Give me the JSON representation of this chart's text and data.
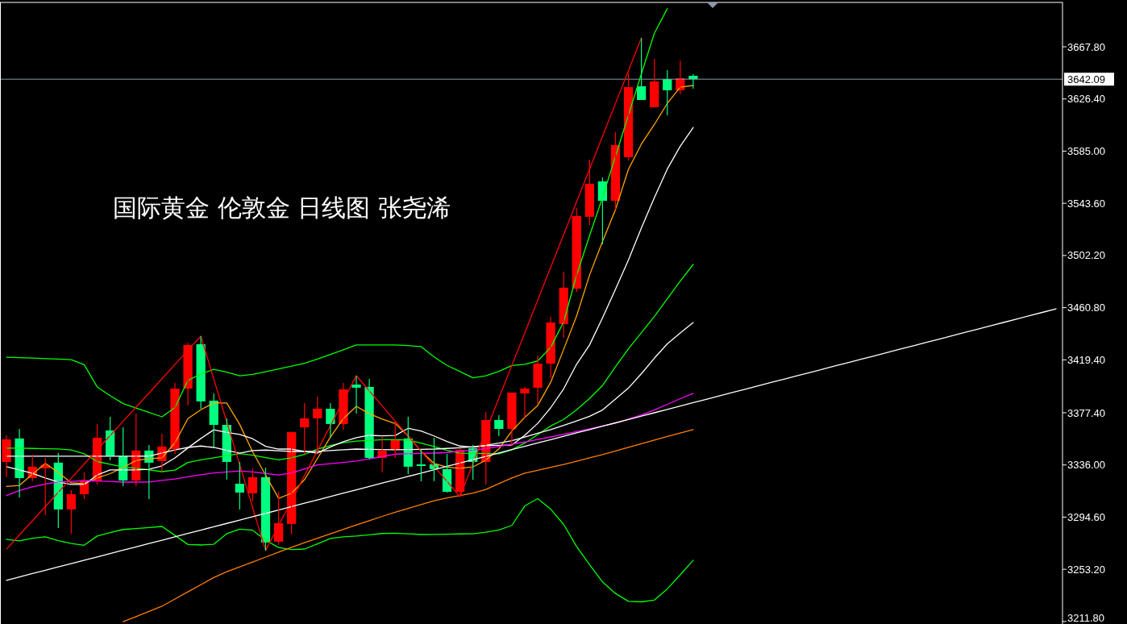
{
  "chart_data": {
    "type": "candlestick",
    "title": "国际黄金 伦敦金 日线图 张尧浠",
    "categories": [
      null,
      null,
      null,
      null,
      null,
      null,
      null,
      null,
      null,
      null,
      null,
      null,
      null,
      null,
      null,
      null,
      null,
      null,
      null,
      null,
      null,
      null,
      null,
      null,
      null,
      null,
      null,
      null,
      null,
      null,
      null,
      null,
      null,
      null,
      null,
      null,
      null,
      null,
      null,
      null,
      null,
      null,
      null,
      null,
      null,
      null,
      null,
      null,
      null,
      null,
      null,
      null,
      null,
      null,
      null,
      null,
      null,
      null,
      null,
      null,
      null,
      null,
      null,
      null,
      null,
      null,
      null,
      null,
      null,
      null,
      null,
      null,
      null,
      null,
      null,
      null,
      null,
      null,
      null,
      null,
      null,
      null
    ],
    "ohlc": [
      [
        3338.4,
        3359.5,
        3326.3,
        3356.3
      ],
      [
        3357.0,
        3364.6,
        3310.3,
        3325.6
      ],
      [
        3325.6,
        3344.2,
        3323.1,
        3334.6
      ],
      [
        3333.3,
        3341.6,
        3296.2,
        3336.0
      ],
      [
        3337.8,
        3345.4,
        3286.0,
        3300.7
      ],
      [
        3300.7,
        3316.0,
        3281.5,
        3312.8
      ],
      [
        3312.8,
        3330.1,
        3309.0,
        3323.7
      ],
      [
        3323.1,
        3368.5,
        3320.5,
        3357.6
      ],
      [
        3363.4,
        3374.2,
        3339.7,
        3342.9
      ],
      [
        3342.9,
        3365.9,
        3319.2,
        3323.7
      ],
      [
        3323.7,
        3376.8,
        3319.2,
        3347.4
      ],
      [
        3347.4,
        3351.8,
        3309.0,
        3337.8
      ],
      [
        3339.1,
        3360.8,
        3330.7,
        3350.6
      ],
      [
        3348.6,
        3401.1,
        3344.8,
        3396.6
      ],
      [
        3396.6,
        3433.1,
        3383.2,
        3431.2
      ],
      [
        3431.8,
        3438.2,
        3380.6,
        3386.4
      ],
      [
        3387.0,
        3392.8,
        3350.6,
        3367.8
      ],
      [
        3367.8,
        3373.0,
        3324.3,
        3338.4
      ],
      [
        3321.1,
        3338.4,
        3300.7,
        3314.1
      ],
      [
        3313.5,
        3333.3,
        3307.1,
        3326.3
      ],
      [
        3326.3,
        3333.9,
        3268.1,
        3274.5
      ],
      [
        3275.1,
        3314.7,
        3272.5,
        3289.8
      ],
      [
        3289.2,
        3362.1,
        3280.9,
        3362.1
      ],
      [
        3365.9,
        3385.1,
        3344.8,
        3373.0
      ],
      [
        3373.0,
        3390.2,
        3348.0,
        3380.6
      ],
      [
        3380.6,
        3385.1,
        3357.6,
        3368.5
      ],
      [
        3368.5,
        3401.1,
        3364.0,
        3396.0
      ],
      [
        3399.8,
        3406.8,
        3376.8,
        3397.3
      ],
      [
        3397.9,
        3404.3,
        3340.3,
        3341.6
      ],
      [
        3341.6,
        3358.2,
        3330.1,
        3347.4
      ],
      [
        3348.0,
        3370.4,
        3341.6,
        3355.7
      ],
      [
        3357.0,
        3374.2,
        3328.8,
        3334.6
      ],
      [
        3336.5,
        3348.0,
        3323.1,
        3335.2
      ],
      [
        3336.5,
        3357.6,
        3323.1,
        3332.7
      ],
      [
        3332.7,
        3344.8,
        3314.1,
        3314.7
      ],
      [
        3314.7,
        3349.3,
        3310.9,
        3348.0
      ],
      [
        3349.3,
        3351.8,
        3324.3,
        3338.4
      ],
      [
        3338.4,
        3378.1,
        3320.5,
        3371.7
      ],
      [
        3371.7,
        3375.5,
        3358.9,
        3364.6
      ],
      [
        3364.6,
        3393.4,
        3351.2,
        3393.4
      ],
      [
        3392.8,
        3397.9,
        3373.0,
        3396.6
      ],
      [
        3397.3,
        3422.8,
        3383.8,
        3416.4
      ],
      [
        3416.4,
        3453.5,
        3404.9,
        3449.0
      ],
      [
        3447.8,
        3489.4,
        3436.9,
        3476.6
      ],
      [
        3475.9,
        3539.9,
        3473.4,
        3533.5
      ],
      [
        3532.9,
        3578.3,
        3526.4,
        3559.1
      ],
      [
        3561.0,
        3564.2,
        3511.1,
        3545.6
      ],
      [
        3545.6,
        3600.0,
        3538.6,
        3589.8
      ],
      [
        3580.2,
        3646.7,
        3577.6,
        3635.8
      ],
      [
        3636.5,
        3674.8,
        3625.6,
        3625.6
      ],
      [
        3619.8,
        3658.2,
        3619.8,
        3640.3
      ],
      [
        3642.2,
        3649.3,
        3613.4,
        3633.3
      ],
      [
        3633.3,
        3656.9,
        3630.1,
        3642.9
      ],
      [
        3644.8,
        3646.1,
        3634.5,
        3642.09
      ],
      null,
      null,
      null,
      null,
      null,
      null,
      null,
      null,
      null,
      null,
      null,
      null,
      null,
      null,
      null,
      null,
      null,
      null,
      null,
      null,
      null,
      null,
      null,
      null,
      null,
      null,
      null,
      null
    ],
    "colors": [
      "#ff0000",
      "#00ff7f",
      "#ff0000",
      "#ff0000",
      "#00ff7f",
      "#ff0000",
      "#ff0000",
      "#ff0000",
      "#00ff7f",
      "#00ff7f",
      "#ff0000",
      "#00ff7f",
      "#ff0000",
      "#ff0000",
      "#ff0000",
      "#00ff7f",
      "#00ff7f",
      "#00ff7f",
      "#00ff7f",
      "#ff0000",
      "#00ff7f",
      "#ff0000",
      "#ff0000",
      "#ff0000",
      "#ff0000",
      "#00ff7f",
      "#ff0000",
      "#00ff7f",
      "#00ff7f",
      "#ff0000",
      "#ff0000",
      "#00ff7f",
      "#00ff7f",
      "#00ff7f",
      "#00ff7f",
      "#ff0000",
      "#00ff7f",
      "#ff0000",
      "#00ff7f",
      "#ff0000",
      "#ff0000",
      "#ff0000",
      "#ff0000",
      "#ff0000",
      "#ff0000",
      "#ff0000",
      "#00ff7f",
      "#ff0000",
      "#ff0000",
      "#00ff7f",
      "#ff0000",
      "#00ff7f",
      "#ff0000",
      "#00ff7f",
      null,
      null,
      null,
      null,
      null,
      null,
      null,
      null,
      null,
      null,
      null,
      null,
      null,
      null,
      null,
      null,
      null,
      null,
      null,
      null,
      null,
      null,
      null,
      null,
      null,
      null,
      null,
      null
    ],
    "series": [
      {
        "type": "line",
        "color": "#00ff00",
        "values": [
          3421.5,
          3421.2,
          3420.8,
          3420.4,
          3420.0,
          3419.6,
          3415.5,
          3397.9,
          3391.0,
          3384.7,
          3381.2,
          3377.7,
          3374.2,
          3381.5,
          3403.0,
          3408.2,
          3411.9,
          3409.6,
          3406.8,
          3407.8,
          3410.0,
          3412.2,
          3414.4,
          3416.6,
          3420.0,
          3423.7,
          3427.4,
          3431.2,
          3431.2,
          3431.2,
          3431.2,
          3430.7,
          3429.9,
          3421.7,
          3415.0,
          3410.1,
          3405.2,
          3406.8,
          3410.3,
          3414.9,
          3415.9,
          3418.5,
          3429.3,
          3449.5,
          3486.6,
          3518.0,
          3548.2,
          3581.0,
          3613.5,
          3646.4,
          3678.5,
          3698.1,
          null,
          null,
          null,
          null,
          null,
          null,
          null,
          null,
          null,
          null,
          null,
          null,
          null,
          null,
          null,
          null,
          null,
          null,
          null,
          null,
          null,
          null,
          null,
          null,
          null,
          null,
          null,
          null,
          null,
          null
        ]
      },
      {
        "type": "line",
        "color": "#00ff00",
        "values": [
          3349.3,
          3349.3,
          3349.1,
          3348.9,
          3348.7,
          3347.9,
          3344.9,
          3338.7,
          3336.5,
          3334.5,
          3333.3,
          3332.1,
          3330.7,
          3331.9,
          3338.0,
          3340.0,
          3341.7,
          3343.4,
          3345.0,
          3343.8,
          3341.8,
          3340.0,
          3341.6,
          3344.3,
          3348.6,
          3351.4,
          3353.6,
          3354.9,
          3355.4,
          3356.0,
          3356.1,
          3355.8,
          3353.4,
          3350.6,
          3347.6,
          3345.3,
          3345.2,
          3345.0,
          3344.8,
          3348.1,
          3353.3,
          3360.1,
          3366.9,
          3372.1,
          3379.8,
          3388.8,
          3399.0,
          3414.0,
          3428.2,
          3441.0,
          3453.8,
          3467.8,
          3481.9,
          3495.1,
          null,
          null,
          null,
          null,
          null,
          null,
          null,
          null,
          null,
          null,
          null,
          null,
          null,
          null,
          null,
          null,
          null,
          null,
          null,
          null,
          null,
          null,
          null,
          null,
          null,
          null,
          null,
          null
        ]
      },
      {
        "type": "line",
        "color": "#00ff00",
        "values": [
          3276.9,
          3275.8,
          3277.9,
          3279.0,
          3276.0,
          3273.7,
          3272.3,
          3279.6,
          3282.3,
          3284.8,
          3285.5,
          3286.3,
          3287.2,
          3280.1,
          3272.9,
          3272.5,
          3273.1,
          3281.5,
          3285.1,
          3284.2,
          3276.3,
          3270.5,
          3268.9,
          3269.3,
          3273.4,
          3277.7,
          3279.0,
          3279.6,
          3280.6,
          3281.6,
          3281.9,
          3281.4,
          3280.8,
          3280.9,
          3281.1,
          3281.3,
          3281.4,
          3282.6,
          3284.4,
          3288.0,
          3303.5,
          3309.3,
          3300.9,
          3288.8,
          3271.3,
          3256.9,
          3243.2,
          3234.0,
          3227.8,
          3227.4,
          3228.8,
          3237.7,
          3248.8,
          3260.4,
          null,
          null,
          null,
          null,
          null,
          null,
          null,
          null,
          null,
          null,
          null,
          null,
          null,
          null,
          null,
          null,
          null,
          null,
          null,
          null,
          null,
          null,
          null,
          null,
          null,
          null,
          null,
          null
        ]
      },
      {
        "type": "line",
        "color": "#ffa500",
        "values": [
          3318.9,
          3319.8,
          3328.6,
          3337.3,
          3330.0,
          3321.8,
          3321.1,
          3325.6,
          3329.1,
          3333.9,
          3339.6,
          3341.0,
          3341.6,
          3353.6,
          3372.8,
          3379.8,
          3385.3,
          3385.1,
          3368.2,
          3346.4,
          3328.0,
          3309.5,
          3313.6,
          3324.3,
          3341.1,
          3358.1,
          3372.8,
          3382.5,
          3376.7,
          3372.3,
          3368.9,
          3359.0,
          3346.8,
          3337.2,
          3334.3,
          3333.3,
          3334.4,
          3339.8,
          3348.7,
          3362.9,
          3373.7,
          3383.2,
          3401.6,
          3427.7,
          3454.2,
          3486.7,
          3513.3,
          3538.6,
          3570.6,
          3590.6,
          3606.1,
          3622.9,
          3635.8,
          3637.1,
          null,
          null,
          null,
          null,
          null,
          null,
          null,
          null,
          null,
          null,
          null,
          null,
          null,
          null,
          null,
          null,
          null,
          null,
          null,
          null,
          null,
          null,
          null,
          null,
          null,
          null,
          null,
          null
        ]
      },
      {
        "type": "line",
        "color": "#ffffff",
        "values": [
          3334.6,
          3332.0,
          3329.3,
          3325.7,
          3322.5,
          3320.5,
          3320.5,
          3328.0,
          3332.0,
          3332.0,
          3332.0,
          3332.5,
          3335.3,
          3341.6,
          3349.5,
          3357.0,
          3363.9,
          3361.8,
          3360.2,
          3356.8,
          3350.8,
          3348.6,
          3348.6,
          3346.8,
          3345.4,
          3350.3,
          3354.5,
          3357.6,
          3359.5,
          3359.1,
          3359.4,
          3365.1,
          3362.9,
          3359.0,
          3354.6,
          3351.0,
          3350.1,
          3351.3,
          3351.6,
          3351.8,
          3359.5,
          3369.0,
          3381.4,
          3396.4,
          3415.9,
          3431.2,
          3452.7,
          3475.4,
          3498.6,
          3524.0,
          3548.1,
          3570.8,
          3588.9,
          3603.8,
          null,
          null,
          null,
          null,
          null,
          null,
          null,
          null,
          null,
          null,
          null,
          null,
          null,
          null,
          null,
          null,
          null,
          null,
          null,
          null,
          null,
          null,
          null,
          null,
          null,
          null,
          null,
          null
        ]
      },
      {
        "type": "line",
        "color": "#ffffff",
        "values": [
          3342.9,
          3342.9,
          3342.9,
          3342.9,
          3342.9,
          3342.9,
          3342.9,
          3342.9,
          3342.9,
          3342.9,
          3342.9,
          3343.0,
          3345.5,
          3347.9,
          3349.9,
          3351.0,
          3349.9,
          3347.6,
          3345.4,
          3347.4,
          3347.8,
          3347.2,
          3346.7,
          3346.7,
          3346.8,
          3347.4,
          3348.0,
          3348.6,
          3348.4,
          3348.2,
          3348.0,
          3348.2,
          3348.4,
          3348.6,
          3349.1,
          3349.7,
          3350.4,
          3351.6,
          3353.3,
          3355.3,
          3358.2,
          3361.1,
          3364.0,
          3367.4,
          3370.9,
          3374.6,
          3379.6,
          3388.3,
          3397.0,
          3408.4,
          3420.7,
          3432.1,
          3440.8,
          3449.0,
          null,
          null,
          null,
          null,
          null,
          null,
          null,
          null,
          null,
          null,
          null,
          null,
          null,
          null,
          null,
          null,
          null,
          null,
          null,
          null,
          null,
          null,
          null,
          null,
          null,
          null,
          null,
          null
        ]
      },
      {
        "type": "line",
        "color": "#ff00ff",
        "values": [
          3311.7,
          3315.7,
          3318.7,
          3320.9,
          3322.5,
          3323.0,
          3323.5,
          3323.3,
          3322.9,
          3322.4,
          3322.4,
          3322.5,
          3323.7,
          3324.9,
          3326.6,
          3328.2,
          3329.7,
          3330.5,
          3331.2,
          3330.5,
          3329.2,
          3328.0,
          3329.6,
          3332.9,
          3336.0,
          3337.0,
          3338.0,
          3339.1,
          3340.9,
          3342.7,
          3344.6,
          3344.9,
          3345.2,
          3345.4,
          3345.9,
          3346.9,
          3347.7,
          3349.0,
          3350.7,
          3352.5,
          3354.2,
          3356.2,
          3358.2,
          3360.3,
          3362.5,
          3364.7,
          3366.9,
          3369.1,
          3372.4,
          3375.7,
          3379.6,
          3384.1,
          3388.6,
          3392.8,
          null,
          null,
          null,
          null,
          null,
          null,
          null,
          null,
          null,
          null,
          null,
          null,
          null,
          null,
          null,
          null,
          null,
          null,
          null,
          null,
          null,
          null,
          null,
          null,
          null,
          null,
          null,
          null
        ]
      },
      {
        "type": "line",
        "color": "#ff7f00",
        "values": [
          null,
          null,
          null,
          null,
          null,
          null,
          null,
          null,
          null,
          3211.6,
          3215.7,
          3219.8,
          3223.9,
          3229.6,
          3235.3,
          3241.0,
          3246.7,
          3251.3,
          3255.1,
          3259.0,
          3262.9,
          3266.8,
          3270.7,
          3274.3,
          3277.8,
          3281.4,
          3284.9,
          3288.4,
          3291.8,
          3295.2,
          3298.4,
          3301.5,
          3304.6,
          3307.6,
          3309.8,
          3311.7,
          3313.6,
          3316.6,
          3321.2,
          3325.7,
          3329.5,
          3331.8,
          3334.1,
          3336.4,
          3339.0,
          3341.6,
          3344.2,
          3347.1,
          3350.0,
          3352.9,
          3355.8,
          3358.6,
          3361.4,
          3364.0,
          null,
          null,
          null,
          null,
          null,
          null,
          null,
          null,
          null,
          null,
          null,
          null,
          null,
          null,
          null,
          null,
          null,
          null,
          null,
          null,
          null,
          null,
          null,
          null,
          null,
          null,
          null,
          null
        ]
      },
      {
        "type": "line",
        "color": "#ff0000",
        "values": [
          3269.2,
          3280.5,
          3291.7,
          3303.0,
          3314.3,
          3325.5,
          3336.8,
          3348.1,
          3359.3,
          3370.6,
          3381.9,
          3393.1,
          3404.4,
          3415.7,
          3426.9,
          3438.2,
          3404.2,
          3370.2,
          3336.2,
          3302.1,
          3268.1,
          3287.9,
          3307.7,
          3327.5,
          3347.4,
          3367.2,
          3387.0,
          3406.8,
          3394.8,
          3382.8,
          3370.8,
          3358.9,
          3346.9,
          3334.9,
          3322.9,
          3310.9,
          3336.9,
          3362.9,
          3388.9,
          3414.9,
          3440.8,
          3466.8,
          3492.8,
          3518.8,
          3544.8,
          3570.8,
          3596.8,
          3622.8,
          3648.8,
          3674.8,
          null,
          null,
          null,
          null,
          null,
          null,
          null,
          null,
          null,
          null,
          null,
          null,
          null,
          null,
          null,
          null,
          null,
          null,
          null,
          null,
          null,
          null,
          null,
          null,
          null,
          null,
          null,
          null,
          null,
          null,
          null,
          null
        ]
      },
      {
        "type": "line",
        "color": "#ffffff",
        "values": [
          3244.4,
          3247.1,
          3249.8,
          3252.4,
          3255.1,
          3257.7,
          3260.4,
          3263.0,
          3265.7,
          3268.4,
          3271.0,
          3273.7,
          3276.3,
          3279.0,
          3281.7,
          3284.3,
          3287.0,
          3289.6,
          3292.3,
          3295.0,
          3297.6,
          3300.3,
          3302.9,
          3305.6,
          3308.3,
          3310.9,
          3313.6,
          3316.2,
          3318.9,
          3321.6,
          3324.2,
          3326.9,
          3329.5,
          3332.2,
          3334.9,
          3337.5,
          3340.2,
          3342.8,
          3345.5,
          3348.2,
          3350.8,
          3353.5,
          3356.1,
          3358.8,
          3361.5,
          3364.1,
          3366.8,
          3369.4,
          3372.1,
          3374.8,
          3377.4,
          3380.1,
          3382.7,
          3385.4,
          3388.1,
          3390.7,
          3393.4,
          3396.0,
          3398.7,
          3401.4,
          3404.0,
          3406.7,
          3409.3,
          3412.0,
          3414.7,
          3417.3,
          3420.0,
          3422.6,
          3425.3,
          3428.0,
          3430.6,
          3433.3,
          3435.9,
          3438.6,
          3441.3,
          3443.9,
          3446.6,
          3449.2,
          3451.9,
          3454.6,
          3457.2,
          3459.9
        ]
      }
    ],
    "ref_lines": [
      {
        "axis": "y",
        "value": 3642.09,
        "label": "3642.09",
        "color": "#8a9aaa"
      }
    ],
    "ylim": [
      3209.8,
      3703.0
    ],
    "yticks": [
      {
        "value": 3211.8,
        "label": "3211.80"
      },
      {
        "value": 3253.2,
        "label": "3253.20"
      },
      {
        "value": 3294.6,
        "label": "3294.60"
      },
      {
        "value": 3336.0,
        "label": "3336.00"
      },
      {
        "value": 3377.4,
        "label": "3377.40"
      },
      {
        "value": 3419.4,
        "label": "3419.40"
      },
      {
        "value": 3460.8,
        "label": "3460.80"
      },
      {
        "value": 3502.2,
        "label": "3502.20"
      },
      {
        "value": 3543.6,
        "label": "3543.60"
      },
      {
        "value": 3585.0,
        "label": "3585.00"
      },
      {
        "value": 3626.4,
        "label": "3626.40"
      },
      {
        "value": 3667.8,
        "label": "3667.80"
      }
    ],
    "tick_labels": "y"
  }
}
